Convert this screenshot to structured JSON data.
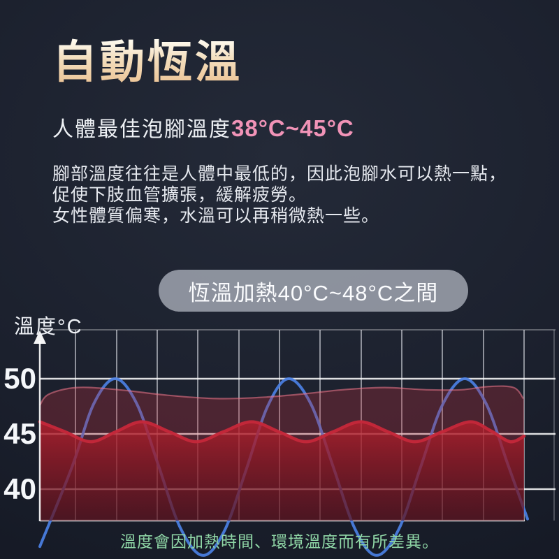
{
  "page": {
    "title": "自動恆溫",
    "subtitle": {
      "prefix": "人體最佳泡腳溫度",
      "range": "38°C~45°C"
    },
    "body_lines": [
      "腳部溫度往往是人體中最低的，因此泡腳水可以熱一點，",
      "促使下肢血管擴張，緩解疲勞。",
      "女性體質偏寒，水溫可以再稍微熱一些。"
    ],
    "badge_label": "恆溫加熱40°C~48°C之間",
    "footnote": "溫度會因加熱時間、環境溫度而有所差異。"
  },
  "colors": {
    "title_gradient_top": "#fdf8ec",
    "title_gradient_bottom": "#ecc497",
    "subtitle_pink": "#f193b7",
    "footnote_green": "#8fd6a6",
    "line_blue": "#4b80e4",
    "wave_red": "#c5283a",
    "band_red_fill": "rgba(190,45,60,0.30)",
    "band_red_edge": "rgba(240,120,140,0.55)",
    "badge_bg": "#8b909b",
    "background_navy": "#1b202d"
  },
  "chart_data": {
    "type": "line",
    "title": "",
    "xlabel": "",
    "ylabel": "溫度°C",
    "y_ticks": [
      "50",
      "45",
      "40"
    ],
    "ylim": [
      37,
      54.5
    ],
    "x_ticks": [],
    "grid": true,
    "legend": "none",
    "note": "x axis is unlabeled time; points are [x_px, temperature_C]",
    "series": [
      {
        "role": "band",
        "name": "constant-heat-band-top-~49C",
        "type": "area",
        "approx_range_c": [
          48.0,
          49.3
        ],
        "points": [
          [
            57,
            47.6
          ],
          [
            70,
            48.6
          ],
          [
            110,
            49.2
          ],
          [
            170,
            49.0
          ],
          [
            240,
            48.5
          ],
          [
            310,
            48.2
          ],
          [
            370,
            48.3
          ],
          [
            430,
            48.6
          ],
          [
            490,
            49.0
          ],
          [
            550,
            49.2
          ],
          [
            610,
            49.0
          ],
          [
            660,
            49.0
          ],
          [
            700,
            49.3
          ],
          [
            735,
            49.2
          ],
          [
            749,
            48.2
          ]
        ]
      },
      {
        "role": "wave",
        "name": "water-temperature-wave-~45C",
        "type": "area",
        "approx_range_c": [
          44.3,
          46.1
        ],
        "points": [
          [
            57,
            46.1
          ],
          [
            93,
            45.2
          ],
          [
            130,
            44.3
          ],
          [
            166,
            45.2
          ],
          [
            203,
            46.1
          ],
          [
            242,
            45.2
          ],
          [
            281,
            44.3
          ],
          [
            320,
            45.2
          ],
          [
            360,
            46.1
          ],
          [
            399,
            45.2
          ],
          [
            438,
            44.3
          ],
          [
            477,
            45.2
          ],
          [
            516,
            46.1
          ],
          [
            555,
            45.2
          ],
          [
            594,
            44.3
          ],
          [
            633,
            45.2
          ],
          [
            673,
            46.1
          ],
          [
            702,
            45.3
          ],
          [
            730,
            44.3
          ],
          [
            750,
            44.8
          ]
        ]
      },
      {
        "role": "cycle",
        "name": "heating-cycle-line-34-50C",
        "type": "line",
        "approx_range_c": [
          34,
          50
        ],
        "points": [
          [
            57,
            34.8
          ],
          [
            103,
            42.0
          ],
          [
            134,
            47.7
          ],
          [
            165,
            50
          ],
          [
            196,
            47.7
          ],
          [
            227,
            42.1
          ],
          [
            258,
            36.5
          ],
          [
            290,
            34.0
          ],
          [
            321,
            36.2
          ],
          [
            352,
            41.7
          ],
          [
            383,
            47.5
          ],
          [
            413,
            50
          ],
          [
            445,
            47.7
          ],
          [
            477,
            42.0
          ],
          [
            508,
            36.4
          ],
          [
            539,
            34.0
          ],
          [
            571,
            36.4
          ],
          [
            602,
            42.0
          ],
          [
            633,
            47.6
          ],
          [
            665,
            50
          ],
          [
            696,
            47.7
          ],
          [
            727,
            42.2
          ],
          [
            755,
            37.3
          ]
        ]
      }
    ]
  }
}
